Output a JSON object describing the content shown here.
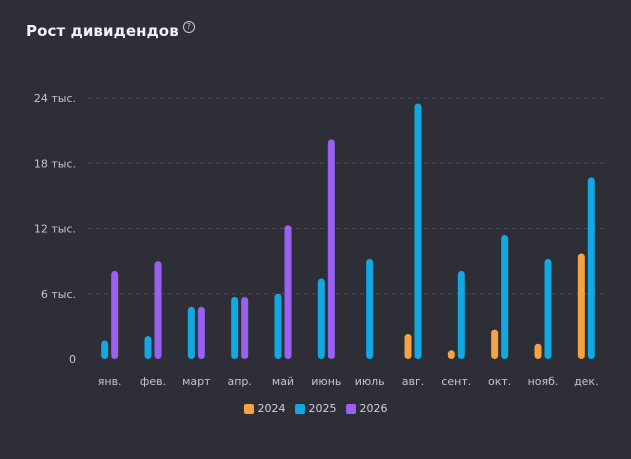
{
  "title": "Рост дивидендов",
  "help_icon": "question-circle-icon",
  "chart_data": {
    "type": "bar",
    "categories": [
      "янв.",
      "фев.",
      "март",
      "апр.",
      "май",
      "июнь",
      "июль",
      "авг.",
      "сент.",
      "окт.",
      "нояб.",
      "дек."
    ],
    "yticks": [
      {
        "value": 0,
        "label": "0"
      },
      {
        "value": 6000,
        "label": "6 тыс."
      },
      {
        "value": 12000,
        "label": "12 тыс."
      },
      {
        "value": 18000,
        "label": "18 тыс."
      },
      {
        "value": 24000,
        "label": "24 тыс."
      }
    ],
    "ylim": [
      0,
      24000
    ],
    "grid": true,
    "legend_position": "bottom",
    "series": [
      {
        "name": "2024",
        "color": "#f4a344",
        "values": [
          0,
          0,
          0,
          0,
          0,
          0,
          0,
          2300,
          800,
          2700,
          1400,
          9700
        ]
      },
      {
        "name": "2025",
        "color": "#12a9e3",
        "values": [
          1700,
          2100,
          4800,
          5700,
          6000,
          7400,
          9200,
          23500,
          8100,
          11400,
          9200,
          16700
        ]
      },
      {
        "name": "2026",
        "color": "#9a61f0",
        "values": [
          8100,
          9000,
          4800,
          5700,
          12300,
          20200,
          0,
          0,
          0,
          0,
          0,
          0
        ]
      }
    ]
  }
}
